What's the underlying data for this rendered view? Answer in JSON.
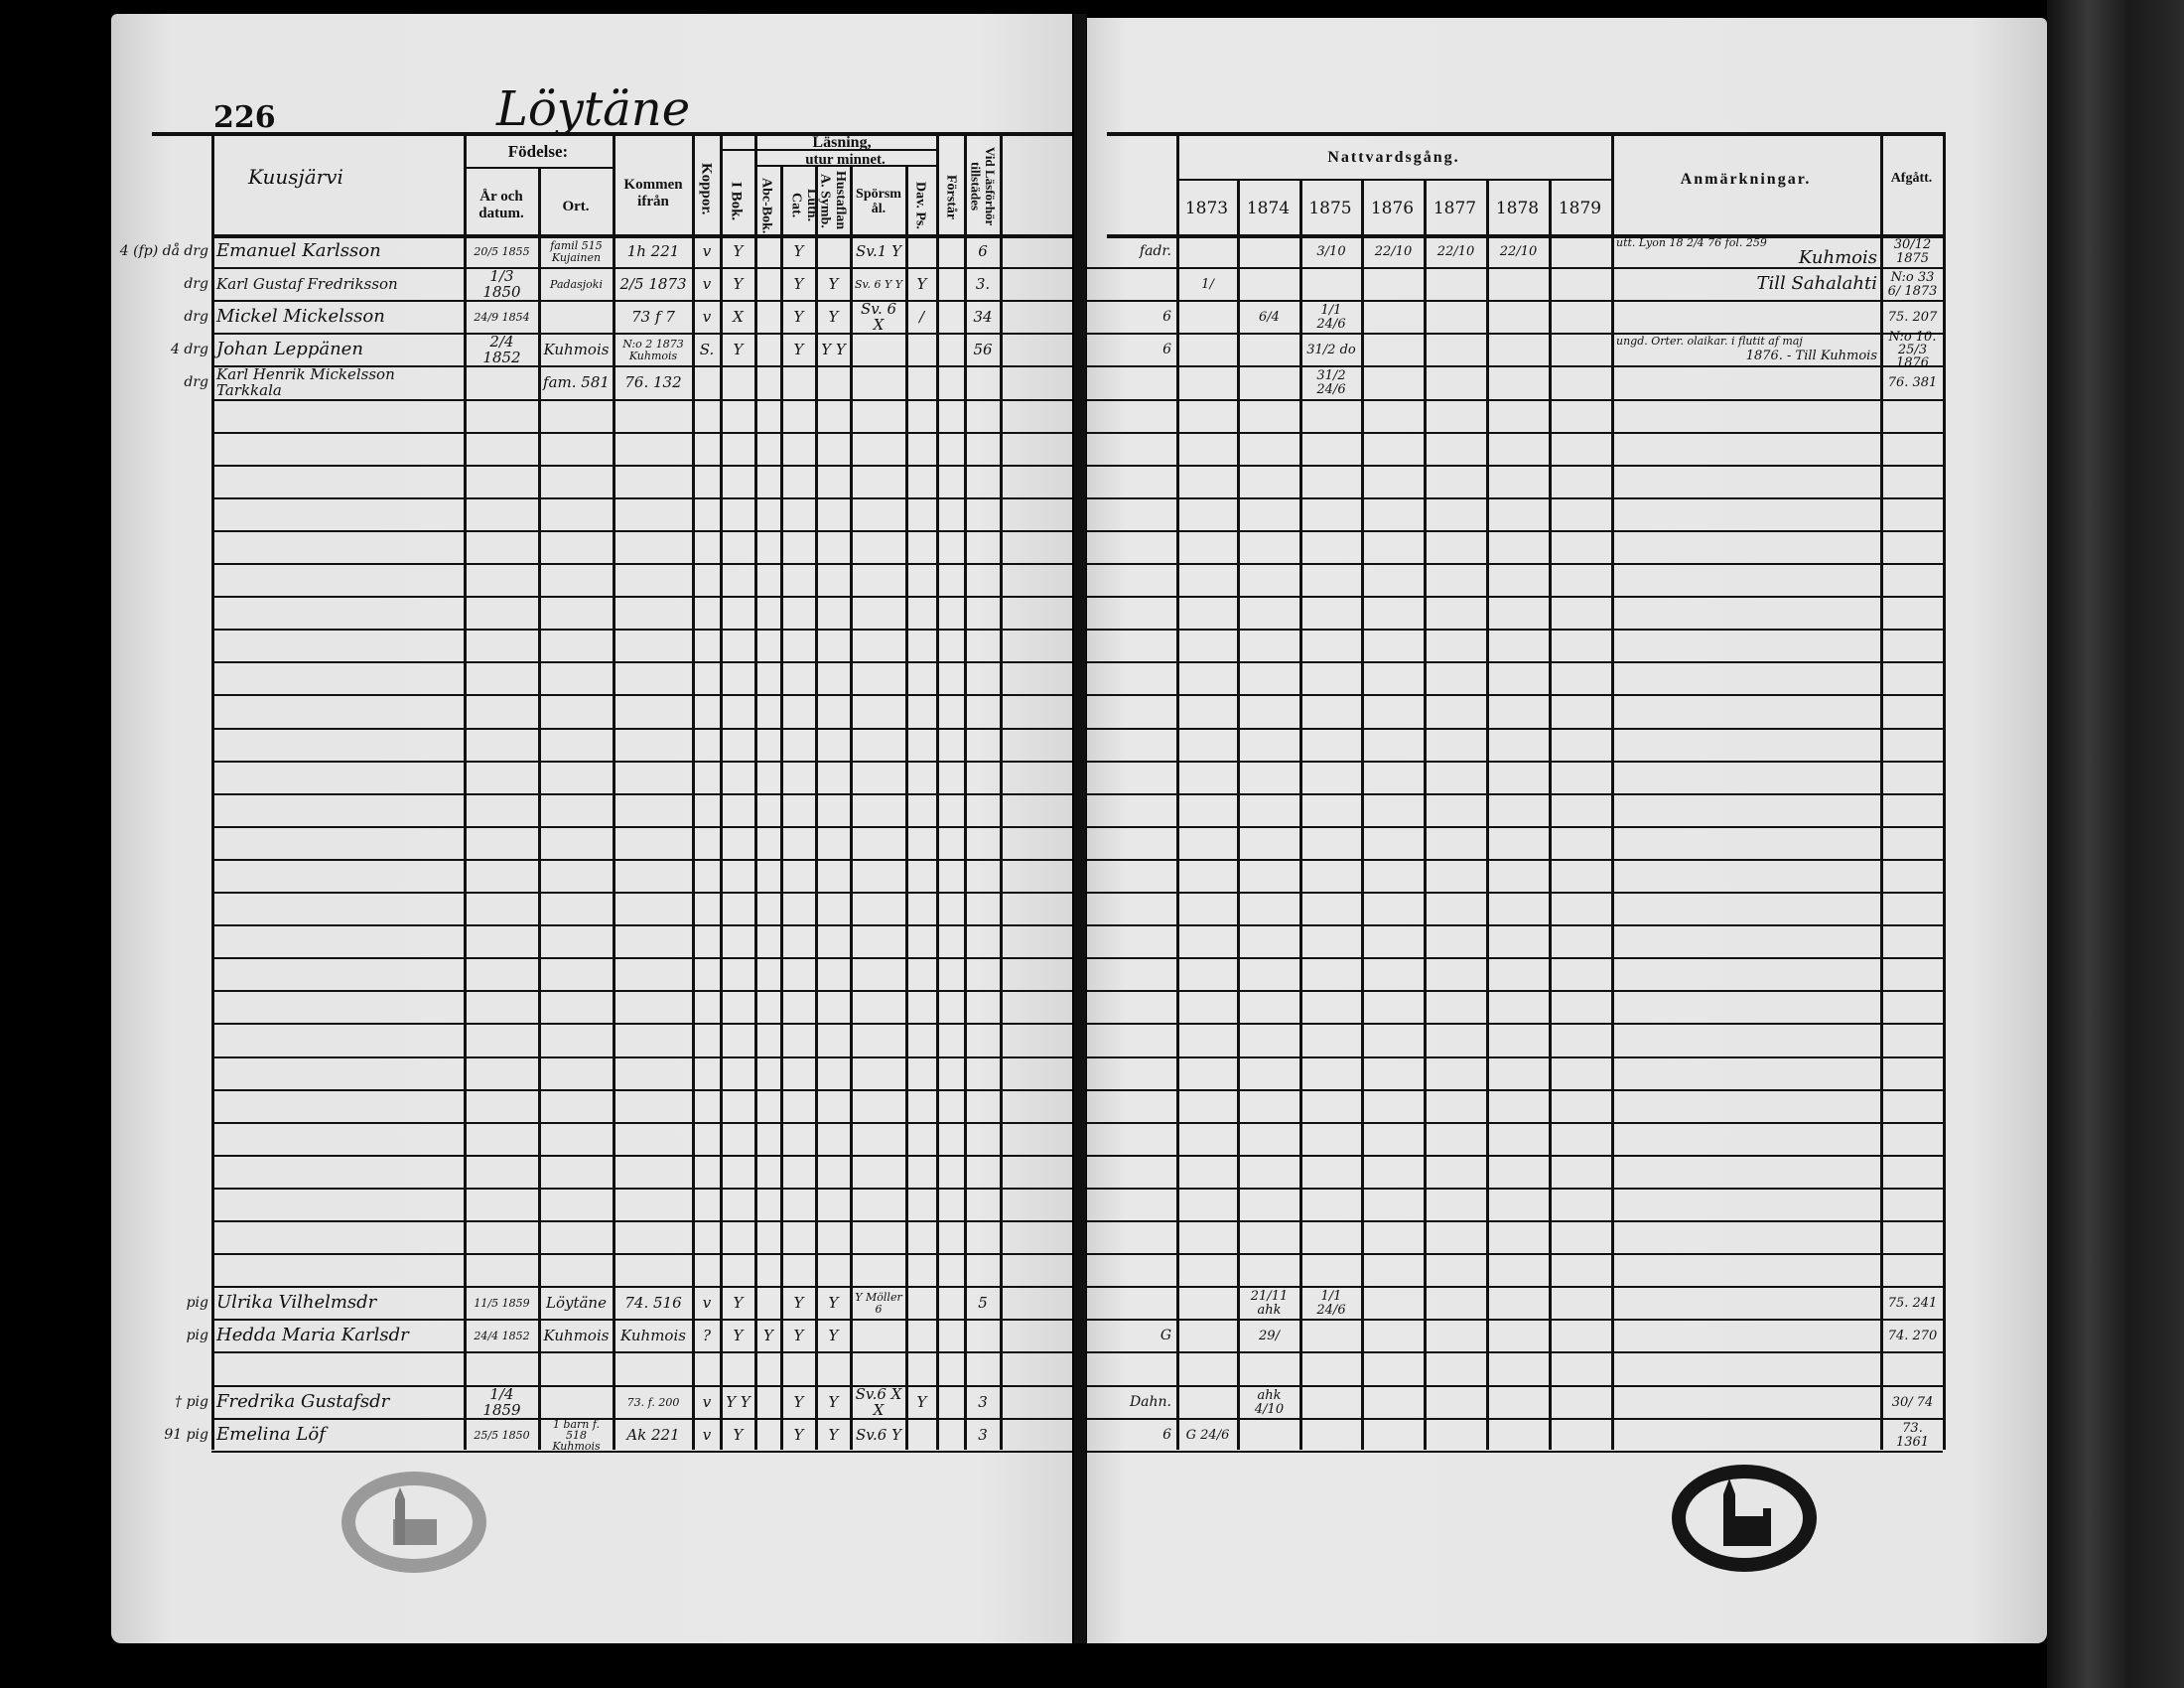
{
  "left": {
    "page_number": "226",
    "village": "Löytäne",
    "headers": {
      "name": "Kuusjärvi",
      "birth": "Födelse:",
      "year_date": "År och datum.",
      "place": "Ort.",
      "came_from": "Kommen ifrån",
      "smallpox": "Koppor.",
      "reading": "Läsning,",
      "by_heart": "utur minnet.",
      "in_book": "I Bok.",
      "abc_book": "Abc-Bok.",
      "luth_cat": "Luth. Cat.",
      "hustaflan": "Hustaflan A. Symb.",
      "questions": "Spörsmål.",
      "davids_psalms": "Dav. Ps.",
      "understanding": "Förstår",
      "at_examination": "Vid Läsförhör tillstädes"
    },
    "rows": [
      {
        "row": 0,
        "margin": "4 (fp) då drg",
        "name": "Emanuel Karlsson",
        "born": "20/5 1855",
        "place": "famil 515 Kujainen",
        "from": "1h 221",
        "smallpox": "v",
        "in_book": "Y",
        "abc": "",
        "luth": "Y",
        "hust": "",
        "questions": "Sv.1 Y",
        "psalms": "",
        "understands": "",
        "exam": "6"
      },
      {
        "row": 1,
        "margin": "drg",
        "name": "Karl Gustaf Fredriksson",
        "born": "1/3 1850",
        "place": "Padasjoki",
        "from": "2/5 1873",
        "smallpox": "v",
        "in_book": "Y",
        "abc": "",
        "luth": "Y",
        "hust": "Y",
        "questions": "Sv. 6 Y Y",
        "psalms": "Y",
        "understands": "",
        "exam": "3."
      },
      {
        "row": 2,
        "margin": "drg",
        "name": "Mickel Mickelsson",
        "born": "24/9 1854",
        "place": "",
        "from": "73 f 7",
        "smallpox": "v",
        "in_book": "X",
        "abc": "",
        "luth": "Y",
        "hust": "Y",
        "questions": "Sv. 6 X",
        "psalms": "/",
        "understands": "",
        "exam": "34"
      },
      {
        "row": 3,
        "margin": "4 drg",
        "name": "Johan Leppänen",
        "born": "2/4 1852",
        "place": "Kuhmois",
        "from": "N:o 2 1873 Kuhmois",
        "smallpox": "S.",
        "in_book": "Y",
        "abc": "",
        "luth": "Y",
        "hust": "Y Y",
        "questions": "",
        "psalms": "",
        "understands": "",
        "exam": "56"
      },
      {
        "row": 4,
        "margin": "drg",
        "name": "Karl Henrik Mickelsson Tarkkala",
        "born": "",
        "place": "fam. 581",
        "from": "76. 132",
        "smallpox": "",
        "in_book": "",
        "abc": "",
        "luth": "",
        "hust": "",
        "questions": "",
        "psalms": "",
        "understands": "",
        "exam": ""
      },
      {
        "row": 32,
        "margin": "pig",
        "name": "Ulrika Vilhelmsdr",
        "born": "11/5 1859",
        "place": "Löytäne",
        "from": "74. 516",
        "smallpox": "v",
        "in_book": "Y",
        "abc": "",
        "luth": "Y",
        "hust": "Y",
        "questions": "Y Möller 6",
        "psalms": "",
        "understands": "",
        "exam": "5"
      },
      {
        "row": 33,
        "margin": "pig",
        "name": "Hedda Maria Karlsdr",
        "born": "24/4 1852",
        "place": "Kuhmois",
        "from": "Kuhmois",
        "smallpox": "?",
        "in_book": "Y",
        "abc": "Y",
        "luth": "Y",
        "hust": "Y",
        "questions": "",
        "psalms": "",
        "understands": "",
        "exam": ""
      },
      {
        "row": 35,
        "margin": "† pig",
        "name": "Fredrika Gustafsdr",
        "born": "1/4 1859",
        "place": "",
        "from": "73. f. 200",
        "smallpox": "v",
        "in_book": "Y Y",
        "abc": "",
        "luth": "Y",
        "hust": "Y",
        "questions": "Sv.6 X X",
        "psalms": "Y",
        "understands": "",
        "exam": "3"
      },
      {
        "row": 36,
        "margin": "91 pig",
        "name": "Emelina Löf",
        "born": "25/5 1850",
        "place": "1 barn f. 518 Kuhmois",
        "from": "Ak 221",
        "smallpox": "v",
        "in_book": "Y",
        "abc": "",
        "luth": "Y",
        "hust": "Y",
        "questions": "Sv.6 Y",
        "psalms": "",
        "understands": "",
        "exam": "3"
      }
    ]
  },
  "right": {
    "headers": {
      "communion": "Nattvardsgång.",
      "years": [
        "1873",
        "1874",
        "1875",
        "1876",
        "1877",
        "1878",
        "1879"
      ],
      "remarks": "Anmärkningar.",
      "departed": "Afgått."
    },
    "rows": [
      {
        "row": 0,
        "margin": "fadr.",
        "c1873": "",
        "c1874": "",
        "c1875": "3/10",
        "c1876": "22/10",
        "c1877": "22/10",
        "c1878": "22/10",
        "c1879": "",
        "remark_top": "utt. Lyon 18 2/4 76 fol. 259",
        "remark": "Kuhmois",
        "departed": "30/12 1875"
      },
      {
        "row": 1,
        "margin": "",
        "c1873": "1/",
        "c1874": "",
        "c1875": "",
        "c1876": "",
        "c1877": "",
        "c1878": "",
        "c1879": "",
        "remark_top": "",
        "remark": "Till Sahalahti",
        "departed": "N:o 33 6/ 1873"
      },
      {
        "row": 2,
        "margin": "6",
        "c1873": "",
        "c1874": "6/4",
        "c1875": "1/1 24/6",
        "c1876": "",
        "c1877": "",
        "c1878": "",
        "c1879": "",
        "remark_top": "",
        "remark": "",
        "departed": "75. 207"
      },
      {
        "row": 3,
        "margin": "6",
        "c1873": "",
        "c1874": "",
        "c1875": "31/2 do",
        "c1876": "",
        "c1877": "",
        "c1878": "",
        "c1879": "",
        "remark_top": "ungd. Orter. olaikar. i flutit af maj",
        "remark": "1876. - Till Kuhmois",
        "departed": "N:o 10. 25/3 1876"
      },
      {
        "row": 4,
        "margin": "",
        "c1873": "",
        "c1874": "",
        "c1875": "31/2 24/6",
        "c1876": "",
        "c1877": "",
        "c1878": "",
        "c1879": "",
        "remark_top": "",
        "remark": "",
        "departed": "76. 381"
      },
      {
        "row": 32,
        "margin": "",
        "c1873": "",
        "c1874": "21/11 ahk",
        "c1875": "1/1 24/6",
        "c1876": "",
        "c1877": "",
        "c1878": "",
        "c1879": "",
        "remark_top": "",
        "remark": "",
        "departed": "75. 241"
      },
      {
        "row": 33,
        "margin": "G",
        "c1873": "",
        "c1874": "29/",
        "c1875": "",
        "c1876": "",
        "c1877": "",
        "c1878": "",
        "c1879": "",
        "remark_top": "",
        "remark": "",
        "departed": "74. 270"
      },
      {
        "row": 35,
        "margin": "Dahn.",
        "c1873": "",
        "c1874": "ahk 4/10",
        "c1875": "",
        "c1876": "",
        "c1877": "",
        "c1878": "",
        "c1879": "",
        "remark_top": "",
        "remark": "",
        "departed": "30/ 74"
      },
      {
        "row": 36,
        "margin": "6",
        "c1873": "G 24/6",
        "c1874": "",
        "c1875": "",
        "c1876": "",
        "c1877": "",
        "c1878": "",
        "c1879": "",
        "remark_top": "",
        "remark": "",
        "departed": "73. 1361"
      }
    ]
  },
  "colors": {
    "ink": "#111111",
    "paper": "#e4e4e4",
    "background": "#000000"
  }
}
